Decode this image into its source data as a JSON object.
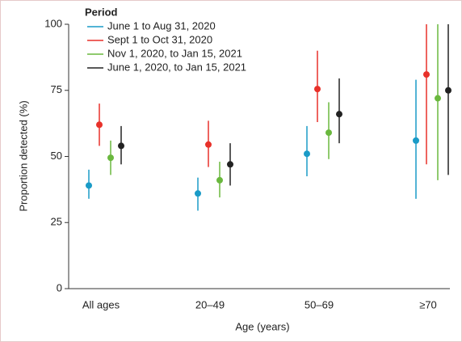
{
  "chart_data": {
    "type": "dot-errorbar",
    "xlabel": "Age (years)",
    "ylabel": "Proportion detected (%)",
    "legend_title": "Period",
    "categories": [
      "All ages",
      "20–49",
      "50–69",
      "≥70"
    ],
    "ylim": [
      0,
      100
    ],
    "yticks": [
      0,
      25,
      50,
      75,
      100
    ],
    "series": [
      {
        "name": "June 1 to Aug 31, 2020",
        "color": "#1a9bc7",
        "values": [
          39,
          36,
          51,
          56
        ],
        "lower": [
          34,
          29.5,
          42.5,
          34
        ],
        "upper": [
          45,
          42,
          61.5,
          79
        ]
      },
      {
        "name": "Sept 1 to Oct 31, 2020",
        "color": "#e8312a",
        "values": [
          62,
          54.5,
          75.5,
          81
        ],
        "lower": [
          54,
          46,
          63,
          47
        ],
        "upper": [
          70,
          63.5,
          90,
          100
        ]
      },
      {
        "name": "Nov 1, 2020, to Jan 15, 2021",
        "color": "#6ab83e",
        "values": [
          49.5,
          41,
          59,
          72
        ],
        "lower": [
          43,
          34.5,
          49,
          41
        ],
        "upper": [
          56,
          48,
          70.5,
          100
        ]
      },
      {
        "name": "June 1, 2020, to Jan 15, 2021",
        "color": "#222222",
        "values": [
          54,
          47,
          66,
          75
        ],
        "lower": [
          47,
          39,
          55,
          43
        ],
        "upper": [
          61.5,
          55,
          79.5,
          100
        ]
      }
    ]
  }
}
